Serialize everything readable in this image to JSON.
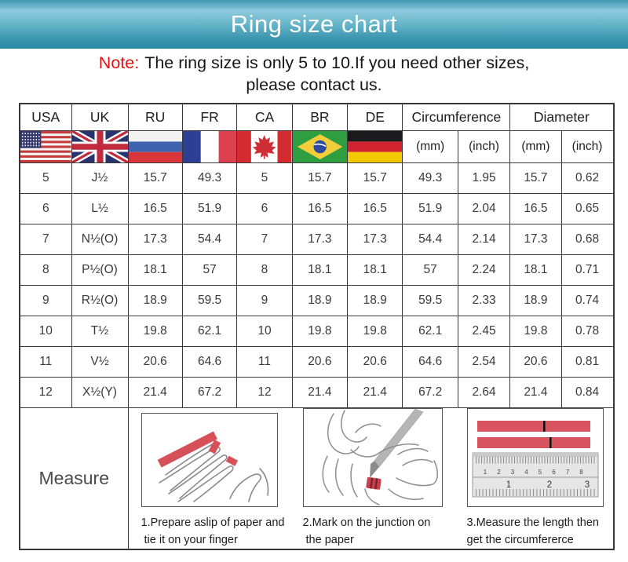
{
  "banner": {
    "title": "Ring size chart",
    "text_color": "#ffffff"
  },
  "note": {
    "label": "Note:",
    "line1": "The ring size is only 5 to 10.If you need other sizes,",
    "line2": "please contact us."
  },
  "table": {
    "headers": [
      "USA",
      "UK",
      "RU",
      "FR",
      "CA",
      "BR",
      "DE",
      "Circumference",
      "Diameter"
    ],
    "subheaders": [
      "(mm)",
      "(inch)",
      "(mm)",
      "(inch)"
    ],
    "flags": [
      "flag-usa",
      "flag-uk",
      "flag-russia",
      "flag-france",
      "flag-canada",
      "flag-brazil",
      "flag-germany"
    ],
    "column_keys": [
      "usa",
      "uk",
      "ru",
      "fr",
      "ca",
      "br",
      "de",
      "circumference-mm",
      "circumference-inch",
      "diameter-mm",
      "diameter-inch"
    ],
    "rows": [
      [
        "5",
        "J½",
        "15.7",
        "49.3",
        "5",
        "15.7",
        "15.7",
        "49.3",
        "1.95",
        "15.7",
        "0.62"
      ],
      [
        "6",
        "L½",
        "16.5",
        "51.9",
        "6",
        "16.5",
        "16.5",
        "51.9",
        "2.04",
        "16.5",
        "0.65"
      ],
      [
        "7",
        "N½(O)",
        "17.3",
        "54.4",
        "7",
        "17.3",
        "17.3",
        "54.4",
        "2.14",
        "17.3",
        "0.68"
      ],
      [
        "8",
        "P½(O)",
        "18.1",
        "57",
        "8",
        "18.1",
        "18.1",
        "57",
        "2.24",
        "18.1",
        "0.71"
      ],
      [
        "9",
        "R½(O)",
        "18.9",
        "59.5",
        "9",
        "18.9",
        "18.9",
        "59.5",
        "2.33",
        "18.9",
        "0.74"
      ],
      [
        "10",
        "T½",
        "19.8",
        "62.1",
        "10",
        "19.8",
        "19.8",
        "62.1",
        "2.45",
        "19.8",
        "0.78"
      ],
      [
        "11",
        "V½",
        "20.6",
        "64.6",
        "11",
        "20.6",
        "20.6",
        "64.6",
        "2.54",
        "20.6",
        "0.81"
      ],
      [
        "12",
        "X½(Y)",
        "21.4",
        "67.2",
        "12",
        "21.4",
        "21.4",
        "67.2",
        "2.64",
        "21.4",
        "0.84"
      ]
    ]
  },
  "measure": {
    "label": "Measure",
    "steps": [
      {
        "icon": "hand-with-paper-slip-illustration",
        "lines": [
          "1.Prepare aslip of paper and",
          " tie it on your finger"
        ]
      },
      {
        "icon": "pen-marking-finger-illustration",
        "lines": [
          "2.Mark on the junction on",
          " the paper"
        ]
      },
      {
        "icon": "ruler-measure-illustration",
        "lines": [
          "3.Measure the length then",
          "get the circumfererce"
        ],
        "cm_numbers": [
          "1",
          "2",
          "3",
          "4",
          "5",
          "6",
          "7",
          "8"
        ],
        "inch_numbers": [
          "1",
          "2",
          "3"
        ]
      }
    ]
  },
  "colors": {
    "banner_teal": "#3f96b0",
    "banner_light": "#8ecadd",
    "note_red": "#e01212",
    "table_border": "#383838",
    "paper_strip_red": "#d65058"
  },
  "chart_data": {
    "type": "table",
    "title": "Ring size chart",
    "columns": [
      "USA",
      "UK",
      "RU",
      "FR",
      "CA",
      "BR",
      "DE",
      "Circumference (mm)",
      "Circumference (inch)",
      "Diameter (mm)",
      "Diameter (inch)"
    ],
    "rows": [
      [
        5,
        "J½",
        15.7,
        49.3,
        5,
        15.7,
        15.7,
        49.3,
        1.95,
        15.7,
        0.62
      ],
      [
        6,
        "L½",
        16.5,
        51.9,
        6,
        16.5,
        16.5,
        51.9,
        2.04,
        16.5,
        0.65
      ],
      [
        7,
        "N½(O)",
        17.3,
        54.4,
        7,
        17.3,
        17.3,
        54.4,
        2.14,
        17.3,
        0.68
      ],
      [
        8,
        "P½(O)",
        18.1,
        57,
        8,
        18.1,
        18.1,
        57,
        2.24,
        18.1,
        0.71
      ],
      [
        9,
        "R½(O)",
        18.9,
        59.5,
        9,
        18.9,
        18.9,
        59.5,
        2.33,
        18.9,
        0.74
      ],
      [
        10,
        "T½",
        19.8,
        62.1,
        10,
        19.8,
        19.8,
        62.1,
        2.45,
        19.8,
        0.78
      ],
      [
        11,
        "V½",
        20.6,
        64.6,
        11,
        20.6,
        20.6,
        64.6,
        2.54,
        20.6,
        0.81
      ],
      [
        12,
        "X½(Y)",
        21.4,
        67.2,
        12,
        21.4,
        21.4,
        67.2,
        2.64,
        21.4,
        0.84
      ]
    ]
  }
}
